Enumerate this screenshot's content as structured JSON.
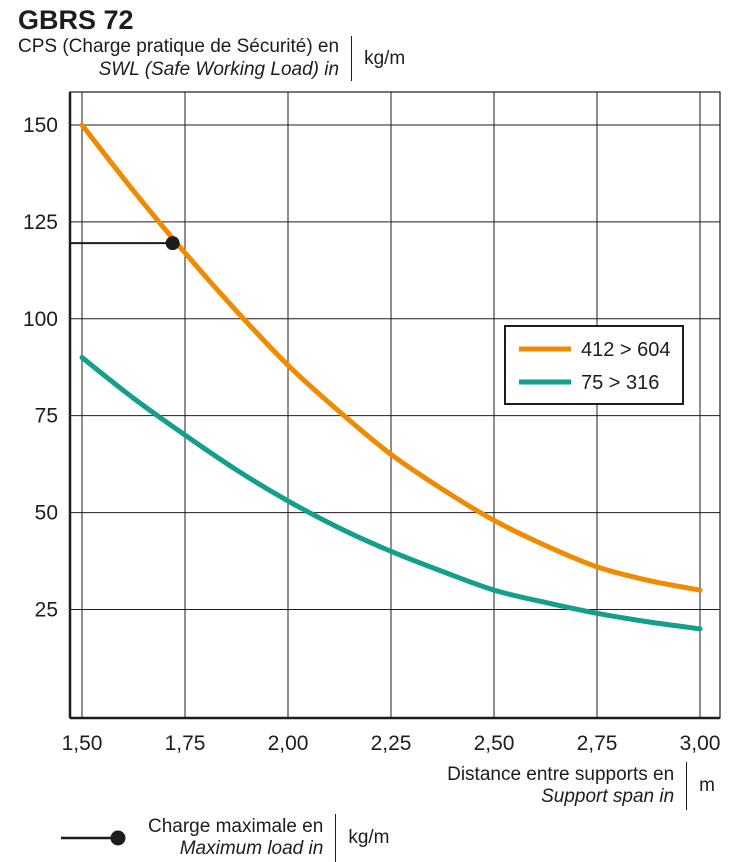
{
  "header": {
    "title": "GBRS 72",
    "y_axis_label_fr": "CPS (Charge pratique de Sécurité) en",
    "y_axis_label_en": "SWL (Safe Working Load) in",
    "y_axis_unit": "kg/m"
  },
  "footer": {
    "x_axis_label_fr": "Distance entre supports en",
    "x_axis_label_en": "Support span in",
    "x_axis_unit": "m",
    "max_load_label_fr": "Charge maximale en",
    "max_load_label_en": "Maximum load in",
    "max_load_unit": "kg/m"
  },
  "chart_data": {
    "type": "line",
    "title": "GBRS 72",
    "xlabel": "Distance entre supports en / Support span in (m)",
    "ylabel": "CPS (Charge pratique de Sécurité) / SWL (Safe Working Load) (kg/m)",
    "x": [
      1.5,
      1.625,
      1.75,
      1.875,
      2.0,
      2.125,
      2.25,
      2.375,
      2.5,
      2.625,
      2.75,
      2.875,
      3.0
    ],
    "series": [
      {
        "name": "412 > 604",
        "color": "#F08A00",
        "values": [
          150,
          133,
          117,
          102,
          88,
          76,
          65,
          56,
          48,
          41.5,
          36,
          32.5,
          30
        ]
      },
      {
        "name": "75 > 316",
        "color": "#149E8C",
        "values": [
          90,
          79.5,
          70,
          61,
          53,
          46,
          40,
          34.8,
          30,
          26.8,
          24,
          21.8,
          20
        ]
      }
    ],
    "xticks": [
      "1,50",
      "1,75",
      "2,00",
      "2,25",
      "2,50",
      "2,75",
      "3,00"
    ],
    "xtick_values": [
      1.5,
      1.75,
      2.0,
      2.25,
      2.5,
      2.75,
      3.0
    ],
    "yticks": [
      150,
      125,
      100,
      75,
      50,
      25
    ],
    "xlim": [
      1.5,
      3.0
    ],
    "ylim": [
      0,
      158
    ],
    "grid": true,
    "legend_position": "inside upper right",
    "max_load_marker": {
      "x": 1.72,
      "y": 119.5
    }
  }
}
